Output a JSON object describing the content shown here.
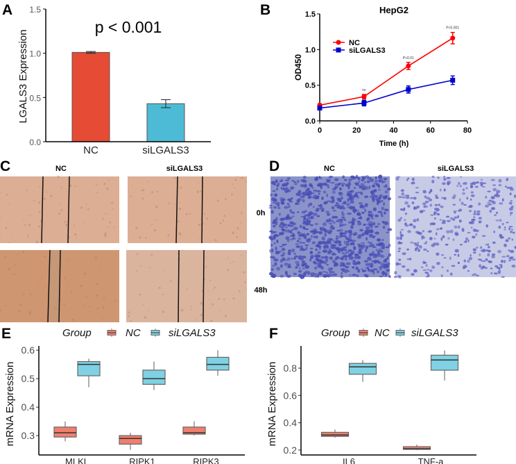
{
  "panels": {
    "A": "A",
    "B": "B",
    "C": "C",
    "D": "D",
    "E": "E",
    "F": "F"
  },
  "chart_data": [
    {
      "panel": "A",
      "type": "bar",
      "categories": [
        "NC",
        "siLGALS3"
      ],
      "values": [
        1.01,
        0.43
      ],
      "errors": [
        0.01,
        0.045
      ],
      "colors": [
        "#e64b35",
        "#4dbbd5"
      ],
      "ylabel": "LGALS3 Expression",
      "xlabel": "",
      "ylim": [
        0,
        1.5
      ],
      "yticks": [
        "0.0",
        "0.5",
        "1.0",
        "1.5"
      ],
      "annotation": "p < 0.001"
    },
    {
      "panel": "B",
      "type": "line",
      "title": "HepG2",
      "xlabel": "Time (h)",
      "ylabel": "OD450",
      "xlim": [
        0,
        80
      ],
      "ylim": [
        0,
        1.5
      ],
      "xticks": [
        "0",
        "20",
        "40",
        "60",
        "80"
      ],
      "yticks": [
        "0.0",
        "0.5",
        "1.0",
        "1.5"
      ],
      "x": [
        0,
        24,
        48,
        72
      ],
      "series": [
        {
          "name": "NC",
          "color": "#ff0000",
          "marker": "circle",
          "values": [
            0.22,
            0.34,
            0.77,
            1.16
          ],
          "errors": [
            0.02,
            0.03,
            0.05,
            0.08
          ]
        },
        {
          "name": "siLGALS3",
          "color": "#0000cc",
          "marker": "square",
          "values": [
            0.18,
            0.25,
            0.44,
            0.57
          ],
          "errors": [
            0.02,
            0.04,
            0.05,
            0.06
          ]
        }
      ],
      "annotations": [
        {
          "x": 24,
          "text": "ns"
        },
        {
          "x": 48,
          "text": "P<0.01"
        },
        {
          "x": 72,
          "text": "P<0.001"
        }
      ],
      "legend": "top-left"
    },
    {
      "panel": "E",
      "type": "box",
      "legend_title": "Group",
      "legend": "top",
      "groups": [
        {
          "name": "NC",
          "color": "#f07f6e"
        },
        {
          "name": "siLGALS3",
          "color": "#7fd1e3"
        }
      ],
      "ylabel": "mRNA Expression",
      "ylim": [
        0.232,
        0.615
      ],
      "yticks": [
        0.3,
        0.4,
        0.5,
        0.6
      ],
      "ytick_labels": [
        "0.3",
        "0.4",
        "0.5",
        "0.6"
      ],
      "categories": [
        "MLKL",
        "RIPK1",
        "RIPK3"
      ],
      "boxes": [
        [
          {
            "min": 0.28,
            "q1": 0.295,
            "median": 0.31,
            "q3": 0.33,
            "max": 0.35
          },
          {
            "min": 0.47,
            "q1": 0.51,
            "median": 0.55,
            "q3": 0.56,
            "max": 0.57
          }
        ],
        [
          {
            "min": 0.25,
            "q1": 0.27,
            "median": 0.29,
            "q3": 0.3,
            "max": 0.31
          },
          {
            "min": 0.46,
            "q1": 0.48,
            "median": 0.5,
            "q3": 0.53,
            "max": 0.56
          }
        ],
        [
          {
            "min": 0.3,
            "q1": 0.305,
            "median": 0.31,
            "q3": 0.33,
            "max": 0.35
          },
          {
            "min": 0.51,
            "q1": 0.53,
            "median": 0.55,
            "q3": 0.575,
            "max": 0.6
          }
        ]
      ]
    },
    {
      "panel": "F",
      "type": "box",
      "legend_title": "Group",
      "legend": "top",
      "groups": [
        {
          "name": "NC",
          "color": "#f07f6e"
        },
        {
          "name": "siLGALS3",
          "color": "#7fd1e3"
        }
      ],
      "ylabel": "mRNA Expression",
      "ylim": [
        0.164,
        0.963
      ],
      "yticks": [
        0.2,
        0.4,
        0.6,
        0.8
      ],
      "ytick_labels": [
        "0.2",
        "0.4",
        "0.6",
        "0.8"
      ],
      "categories": [
        "IL6",
        "TNF-a"
      ],
      "boxes": [
        [
          {
            "min": 0.29,
            "q1": 0.3,
            "median": 0.31,
            "q3": 0.33,
            "max": 0.35
          },
          {
            "min": 0.7,
            "q1": 0.755,
            "median": 0.81,
            "q3": 0.835,
            "max": 0.86
          }
        ],
        [
          {
            "min": 0.2,
            "q1": 0.205,
            "median": 0.21,
            "q3": 0.225,
            "max": 0.24
          },
          {
            "min": 0.71,
            "q1": 0.785,
            "median": 0.86,
            "q3": 0.895,
            "max": 0.93
          }
        ]
      ]
    }
  ],
  "wound_healing": {
    "columns": [
      "NC",
      "siLGALS3"
    ],
    "rows": [
      "0h",
      "48h"
    ]
  },
  "transwell": {
    "columns": [
      "NC",
      "siLGALS3"
    ]
  }
}
